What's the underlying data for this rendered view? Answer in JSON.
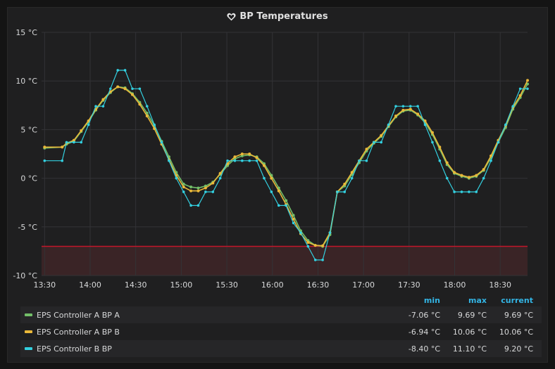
{
  "panel": {
    "title": "BP Temperatures",
    "title_icon": "heart-icon"
  },
  "chart_data": {
    "type": "line",
    "ylabel_unit": "°C",
    "ylim": [
      -10,
      15
    ],
    "y_ticks": [
      "15 °C",
      "10 °C",
      "5 °C",
      "0 °C",
      "-5 °C",
      "-10 °C"
    ],
    "y_tick_values": [
      15,
      10,
      5,
      0,
      -5,
      -10
    ],
    "x_tick_labels": [
      "13:30",
      "14:00",
      "14:30",
      "15:00",
      "15:30",
      "16:00",
      "16:30",
      "17:00",
      "17:30",
      "18:00",
      "18:30"
    ],
    "x_tick_minutes": [
      0,
      30,
      60,
      90,
      120,
      150,
      180,
      210,
      240,
      270,
      300
    ],
    "x_range_minutes": [
      -2,
      318
    ],
    "threshold": {
      "value": -7,
      "color": "#c4162a",
      "fill": "#3a2426"
    },
    "grid": true,
    "series": [
      {
        "name": "EPS Controller A BP A",
        "color": "#73bf69",
        "points": [
          [
            0,
            3.1
          ],
          [
            12,
            3.2
          ],
          [
            15,
            3.5
          ],
          [
            20,
            3.8
          ],
          [
            25,
            4.8
          ],
          [
            30,
            5.8
          ],
          [
            35,
            7.0
          ],
          [
            40,
            8.0
          ],
          [
            45,
            8.8
          ],
          [
            50,
            9.4
          ],
          [
            55,
            9.3
          ],
          [
            60,
            8.7
          ],
          [
            65,
            7.8
          ],
          [
            70,
            6.7
          ],
          [
            75,
            5.4
          ],
          [
            80,
            3.8
          ],
          [
            85,
            2.2
          ],
          [
            90,
            0.6
          ],
          [
            95,
            -0.6
          ],
          [
            100,
            -0.9
          ],
          [
            105,
            -1.0
          ],
          [
            110,
            -0.8
          ],
          [
            115,
            -0.4
          ],
          [
            120,
            0.4
          ],
          [
            125,
            1.3
          ],
          [
            130,
            2.0
          ],
          [
            135,
            2.3
          ],
          [
            140,
            2.4
          ],
          [
            145,
            2.2
          ],
          [
            150,
            1.5
          ],
          [
            155,
            0.3
          ],
          [
            160,
            -1.0
          ],
          [
            165,
            -2.3
          ],
          [
            170,
            -3.8
          ],
          [
            175,
            -5.4
          ],
          [
            180,
            -6.4
          ],
          [
            185,
            -6.9
          ],
          [
            190,
            -7.0
          ],
          [
            195,
            -5.8
          ],
          [
            200,
            -1.4
          ],
          [
            205,
            -0.8
          ],
          [
            210,
            0.4
          ],
          [
            215,
            1.6
          ],
          [
            220,
            2.8
          ],
          [
            225,
            3.6
          ],
          [
            230,
            4.3
          ],
          [
            235,
            5.3
          ],
          [
            240,
            6.3
          ],
          [
            245,
            6.9
          ],
          [
            250,
            7.0
          ],
          [
            255,
            6.5
          ],
          [
            260,
            5.7
          ],
          [
            265,
            4.5
          ],
          [
            270,
            3.0
          ],
          [
            275,
            1.4
          ],
          [
            280,
            0.5
          ],
          [
            285,
            0.2
          ],
          [
            290,
            0.0
          ],
          [
            295,
            0.2
          ],
          [
            300,
            0.8
          ],
          [
            305,
            2.1
          ],
          [
            310,
            3.7
          ],
          [
            315,
            5.2
          ],
          [
            320,
            7.1
          ],
          [
            325,
            8.3
          ],
          [
            330,
            9.69
          ]
        ]
      },
      {
        "name": "EPS Controller A BP B",
        "color": "#eab839",
        "points": [
          [
            0,
            3.2
          ],
          [
            12,
            3.2
          ],
          [
            15,
            3.6
          ],
          [
            20,
            3.9
          ],
          [
            25,
            4.9
          ],
          [
            30,
            5.9
          ],
          [
            35,
            7.1
          ],
          [
            40,
            8.1
          ],
          [
            45,
            8.9
          ],
          [
            50,
            9.4
          ],
          [
            55,
            9.2
          ],
          [
            60,
            8.6
          ],
          [
            65,
            7.6
          ],
          [
            70,
            6.4
          ],
          [
            75,
            5.1
          ],
          [
            80,
            3.5
          ],
          [
            85,
            1.9
          ],
          [
            90,
            0.3
          ],
          [
            95,
            -0.9
          ],
          [
            100,
            -1.3
          ],
          [
            105,
            -1.3
          ],
          [
            110,
            -1.0
          ],
          [
            115,
            -0.5
          ],
          [
            120,
            0.5
          ],
          [
            125,
            1.5
          ],
          [
            130,
            2.2
          ],
          [
            135,
            2.5
          ],
          [
            140,
            2.5
          ],
          [
            145,
            2.1
          ],
          [
            150,
            1.3
          ],
          [
            155,
            0.0
          ],
          [
            160,
            -1.3
          ],
          [
            165,
            -2.7
          ],
          [
            170,
            -4.2
          ],
          [
            175,
            -5.7
          ],
          [
            180,
            -6.6
          ],
          [
            185,
            -6.9
          ],
          [
            190,
            -6.94
          ],
          [
            195,
            -5.6
          ],
          [
            200,
            -1.4
          ],
          [
            205,
            -0.6
          ],
          [
            210,
            0.6
          ],
          [
            215,
            1.8
          ],
          [
            220,
            3.0
          ],
          [
            225,
            3.7
          ],
          [
            230,
            4.4
          ],
          [
            235,
            5.4
          ],
          [
            240,
            6.4
          ],
          [
            245,
            7.0
          ],
          [
            250,
            7.1
          ],
          [
            255,
            6.6
          ],
          [
            260,
            5.9
          ],
          [
            265,
            4.7
          ],
          [
            270,
            3.2
          ],
          [
            275,
            1.6
          ],
          [
            280,
            0.6
          ],
          [
            285,
            0.3
          ],
          [
            290,
            0.1
          ],
          [
            295,
            0.3
          ],
          [
            300,
            0.9
          ],
          [
            305,
            2.3
          ],
          [
            310,
            3.9
          ],
          [
            315,
            5.4
          ],
          [
            320,
            7.3
          ],
          [
            325,
            8.5
          ],
          [
            330,
            10.06
          ]
        ]
      },
      {
        "name": "EPS Controller B BP",
        "color": "#33d0e0",
        "points": [
          [
            0,
            1.8
          ],
          [
            12,
            1.8
          ],
          [
            15,
            3.7
          ],
          [
            20,
            3.7
          ],
          [
            25,
            3.7
          ],
          [
            30,
            5.5
          ],
          [
            35,
            7.4
          ],
          [
            40,
            7.4
          ],
          [
            45,
            9.2
          ],
          [
            50,
            11.1
          ],
          [
            55,
            11.1
          ],
          [
            60,
            9.2
          ],
          [
            65,
            9.2
          ],
          [
            70,
            7.4
          ],
          [
            75,
            5.5
          ],
          [
            80,
            3.7
          ],
          [
            85,
            1.8
          ],
          [
            90,
            0.0
          ],
          [
            95,
            -1.4
          ],
          [
            100,
            -2.8
          ],
          [
            105,
            -2.8
          ],
          [
            110,
            -1.4
          ],
          [
            115,
            -1.4
          ],
          [
            120,
            0.0
          ],
          [
            125,
            1.8
          ],
          [
            130,
            1.8
          ],
          [
            135,
            1.8
          ],
          [
            140,
            1.8
          ],
          [
            145,
            1.8
          ],
          [
            150,
            0.0
          ],
          [
            155,
            -1.4
          ],
          [
            160,
            -2.8
          ],
          [
            165,
            -2.8
          ],
          [
            170,
            -4.6
          ],
          [
            175,
            -5.6
          ],
          [
            180,
            -7.0
          ],
          [
            185,
            -8.4
          ],
          [
            190,
            -8.4
          ],
          [
            195,
            -5.6
          ],
          [
            200,
            -1.4
          ],
          [
            205,
            -1.4
          ],
          [
            210,
            0.0
          ],
          [
            215,
            1.8
          ],
          [
            220,
            1.8
          ],
          [
            225,
            3.7
          ],
          [
            230,
            3.7
          ],
          [
            235,
            5.5
          ],
          [
            240,
            7.4
          ],
          [
            245,
            7.4
          ],
          [
            250,
            7.4
          ],
          [
            255,
            7.4
          ],
          [
            260,
            5.5
          ],
          [
            265,
            3.7
          ],
          [
            270,
            1.8
          ],
          [
            275,
            0.0
          ],
          [
            280,
            -1.4
          ],
          [
            285,
            -1.4
          ],
          [
            290,
            -1.4
          ],
          [
            295,
            -1.4
          ],
          [
            300,
            0.0
          ],
          [
            305,
            1.8
          ],
          [
            310,
            3.7
          ],
          [
            315,
            5.5
          ],
          [
            320,
            7.4
          ],
          [
            325,
            9.2
          ],
          [
            330,
            9.2
          ]
        ]
      }
    ]
  },
  "legend": {
    "headers": {
      "min": "min",
      "max": "max",
      "current": "current"
    },
    "rows": [
      {
        "name": "EPS Controller A BP A",
        "color": "#73bf69",
        "min": "-7.06 °C",
        "max": "9.69 °C",
        "current": "9.69 °C"
      },
      {
        "name": "EPS Controller A BP B",
        "color": "#eab839",
        "min": "-6.94 °C",
        "max": "10.06 °C",
        "current": "10.06 °C"
      },
      {
        "name": "EPS Controller B BP",
        "color": "#33d0e0",
        "min": "-8.40 °C",
        "max": "11.10 °C",
        "current": "9.20 °C"
      }
    ]
  }
}
